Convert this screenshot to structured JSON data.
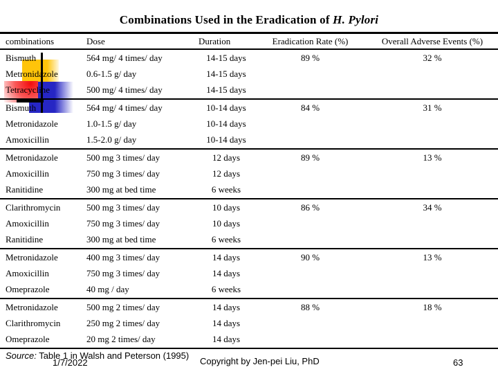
{
  "title": {
    "prefix": "Combinations Used in the Eradication of ",
    "italic_part": "H. Pylori"
  },
  "table": {
    "headers": [
      "combinations",
      "Dose",
      "Duration",
      "Eradication Rate (%)",
      "Overall Adverse Events (%)"
    ],
    "groups": [
      {
        "rows": [
          [
            "Bismuth",
            "564 mg/ 4 times/ day",
            "14-15 days",
            "89 %",
            "32 %"
          ],
          [
            "Metronidazole",
            "0.6-1.5 g/ day",
            "14-15 days",
            "",
            ""
          ],
          [
            "Tetracycline",
            "500 mg/ 4 times/ day",
            "14-15 days",
            "",
            ""
          ]
        ]
      },
      {
        "rows": [
          [
            "Bismuth",
            "564 mg/ 4 times/ day",
            "10-14 days",
            "84 %",
            "31 %"
          ],
          [
            "Metronidazole",
            "1.0-1.5 g/ day",
            "10-14 days",
            "",
            ""
          ],
          [
            "Amoxicillin",
            "1.5-2.0 g/ day",
            "10-14 days",
            "",
            ""
          ]
        ]
      },
      {
        "rows": [
          [
            "Metronidazole",
            "500 mg 3 times/ day",
            "12 days",
            "89 %",
            "13 %"
          ],
          [
            "Amoxicillin",
            "750 mg 3 times/ day",
            "12 days",
            "",
            ""
          ],
          [
            "Ranitidine",
            "300 mg at bed time",
            "6 weeks",
            "",
            ""
          ]
        ]
      },
      {
        "rows": [
          [
            "Clarithromycin",
            "500 mg 3 times/ day",
            "10 days",
            "86 %",
            "34 %"
          ],
          [
            "Amoxicillin",
            "750 mg 3 times/ day",
            "10 days",
            "",
            ""
          ],
          [
            "Ranitidine",
            "300 mg at bed time",
            "6 weeks",
            "",
            ""
          ]
        ]
      },
      {
        "rows": [
          [
            "Metronidazole",
            "400 mg 3 times/ day",
            "14 days",
            "90 %",
            "13 %"
          ],
          [
            "Amoxicillin",
            "750 mg 3 times/ day",
            "14 days",
            "",
            ""
          ],
          [
            "Omeprazole",
            "40 mg / day",
            "6 weeks",
            "",
            ""
          ]
        ]
      },
      {
        "rows": [
          [
            "Metronidazole",
            "500 mg 2 times/ day",
            "14 days",
            "88 %",
            "18 %"
          ],
          [
            "Clarithromycin",
            "250 mg 2 times/ day",
            "14 days",
            "",
            ""
          ],
          [
            "Omeprazole",
            "20 mg 2 times/ day",
            "14 days",
            "",
            ""
          ]
        ]
      }
    ]
  },
  "footer": {
    "source_label": "Source:",
    "source_text": " Table 1 in Walsh and Peterson (1995)",
    "date": "1/7/2022",
    "copyright": "Copyright by Jen-pei Liu, PhD",
    "page_number": "63"
  },
  "decoration": {
    "yellow": "#ffc40a",
    "red": "#f20d0d",
    "blue": "#2626c4",
    "line_color": "#000000"
  }
}
